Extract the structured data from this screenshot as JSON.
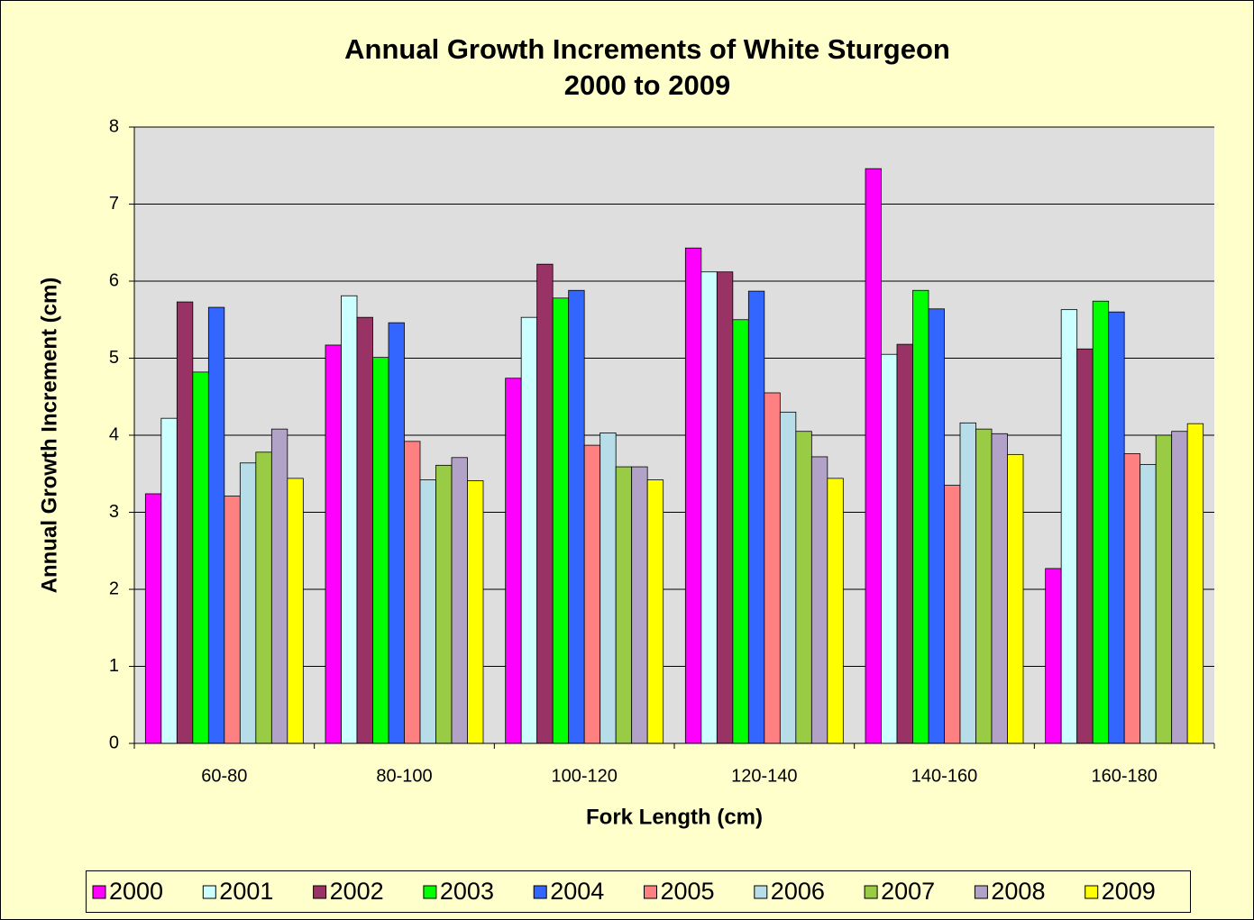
{
  "chart_data": {
    "type": "bar",
    "title": "Annual Growth Increments of White Sturgeon",
    "subtitle": "2000 to 2009",
    "x_label": "Fork Length (cm)",
    "y_label": "Annual Growth Increment (cm)",
    "categories": [
      "60-80",
      "80-100",
      "100-120",
      "120-140",
      "140-160",
      "160-180"
    ],
    "series": [
      {
        "name": "2000",
        "color": "#ff00ff",
        "values": [
          3.24,
          5.17,
          4.74,
          6.43,
          7.46,
          2.27
        ]
      },
      {
        "name": "2001",
        "color": "#ccffff",
        "values": [
          4.22,
          5.81,
          5.53,
          6.12,
          5.05,
          5.63
        ]
      },
      {
        "name": "2002",
        "color": "#993366",
        "values": [
          5.73,
          5.53,
          6.22,
          6.12,
          5.18,
          5.12
        ]
      },
      {
        "name": "2003",
        "color": "#00ff00",
        "values": [
          4.82,
          5.01,
          5.78,
          5.5,
          5.88,
          5.74
        ]
      },
      {
        "name": "2004",
        "color": "#3366ff",
        "values": [
          5.66,
          5.46,
          5.88,
          5.87,
          5.64,
          5.6
        ]
      },
      {
        "name": "2005",
        "color": "#ff8080",
        "values": [
          3.21,
          3.92,
          3.87,
          4.55,
          3.35,
          3.76
        ]
      },
      {
        "name": "2006",
        "color": "#b7dde8",
        "values": [
          3.64,
          3.42,
          4.03,
          4.3,
          4.16,
          3.62
        ]
      },
      {
        "name": "2007",
        "color": "#99cc44",
        "values": [
          3.78,
          3.61,
          3.59,
          4.05,
          4.08,
          4.0
        ]
      },
      {
        "name": "2008",
        "color": "#b3a2c7",
        "values": [
          4.08,
          3.71,
          3.59,
          3.72,
          4.02,
          4.05
        ]
      },
      {
        "name": "2009",
        "color": "#ffff00",
        "values": [
          3.44,
          3.41,
          3.42,
          3.44,
          3.75,
          4.15
        ]
      }
    ],
    "ylim": [
      0,
      8
    ],
    "yticks": [
      0,
      1,
      2,
      3,
      4,
      5,
      6,
      7,
      8
    ],
    "grid": true,
    "legend": "bottom"
  }
}
